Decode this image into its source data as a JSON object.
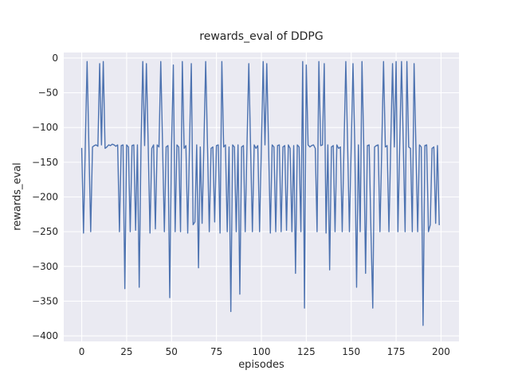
{
  "chart_data": {
    "type": "line",
    "title": "rewards_eval of DDPG",
    "xlabel": "episodes",
    "ylabel": "rewards_eval",
    "xlim": [
      -10,
      210
    ],
    "ylim": [
      -408,
      8
    ],
    "xticks": [
      0,
      25,
      50,
      75,
      100,
      125,
      150,
      175,
      200
    ],
    "xtick_labels": [
      "0",
      "25",
      "50",
      "75",
      "100",
      "125",
      "150",
      "175",
      "200"
    ],
    "yticks": [
      0,
      -50,
      -100,
      -150,
      -200,
      -250,
      -300,
      -350,
      -400
    ],
    "ytick_labels": [
      "0",
      "−50",
      "−100",
      "−150",
      "−200",
      "−250",
      "−300",
      "−350",
      "−400"
    ],
    "grid": true,
    "legend_position": "none",
    "colors": {
      "line": "#4c72b0",
      "plot_background": "#eaeaf2",
      "grid": "#ffffff",
      "text": "#262626",
      "figure_background": "#ffffff"
    },
    "series": [
      {
        "name": "rewards_eval",
        "color": "#4c72b0",
        "values": [
          -130,
          -252,
          -125,
          -5,
          -128,
          -250,
          -128,
          -126,
          -125,
          -127,
          -8,
          -125,
          -5,
          -130,
          -128,
          -125,
          -126,
          -124,
          -125,
          -127,
          -125,
          -250,
          -126,
          -125,
          -332,
          -125,
          -128,
          -250,
          -126,
          -125,
          -248,
          -125,
          -330,
          -128,
          -5,
          -126,
          -8,
          -125,
          -252,
          -130,
          -125,
          -246,
          -125,
          -128,
          -5,
          -125,
          -250,
          -128,
          -126,
          -345,
          -125,
          -10,
          -250,
          -125,
          -128,
          -250,
          -5,
          -130,
          -126,
          -252,
          -125,
          -8,
          -240,
          -236,
          -125,
          -302,
          -128,
          -238,
          -126,
          -5,
          -125,
          -250,
          -130,
          -128,
          -236,
          -126,
          -125,
          -252,
          -5,
          -128,
          -125,
          -250,
          -128,
          -365,
          -125,
          -128,
          -250,
          -125,
          -340,
          -128,
          -126,
          -250,
          -125,
          -8,
          -128,
          -250,
          -125,
          -130,
          -126,
          -250,
          -128,
          -5,
          -125,
          -8,
          -126,
          -252,
          -125,
          -128,
          -250,
          -126,
          -125,
          -250,
          -128,
          -126,
          -248,
          -125,
          -130,
          -250,
          -126,
          -310,
          -125,
          -128,
          -250,
          -5,
          -360,
          -10,
          -125,
          -128,
          -126,
          -125,
          -130,
          -250,
          -5,
          -126,
          -125,
          -8,
          -252,
          -125,
          -305,
          -128,
          -126,
          -250,
          -125,
          -130,
          -128,
          -250,
          -126,
          -5,
          -125,
          -250,
          -128,
          -8,
          -126,
          -330,
          -125,
          -250,
          -5,
          -128,
          -310,
          -126,
          -125,
          -250,
          -360,
          -128,
          -126,
          -125,
          -250,
          -130,
          -5,
          -128,
          -126,
          -250,
          -125,
          -8,
          -128,
          -5,
          -250,
          -126,
          -5,
          -125,
          -250,
          -5,
          -128,
          -130,
          -250,
          -8,
          -126,
          -250,
          -125,
          -128,
          -385,
          -126,
          -125,
          -250,
          -240,
          -130,
          -128,
          -238,
          -126,
          -240
        ]
      }
    ]
  }
}
